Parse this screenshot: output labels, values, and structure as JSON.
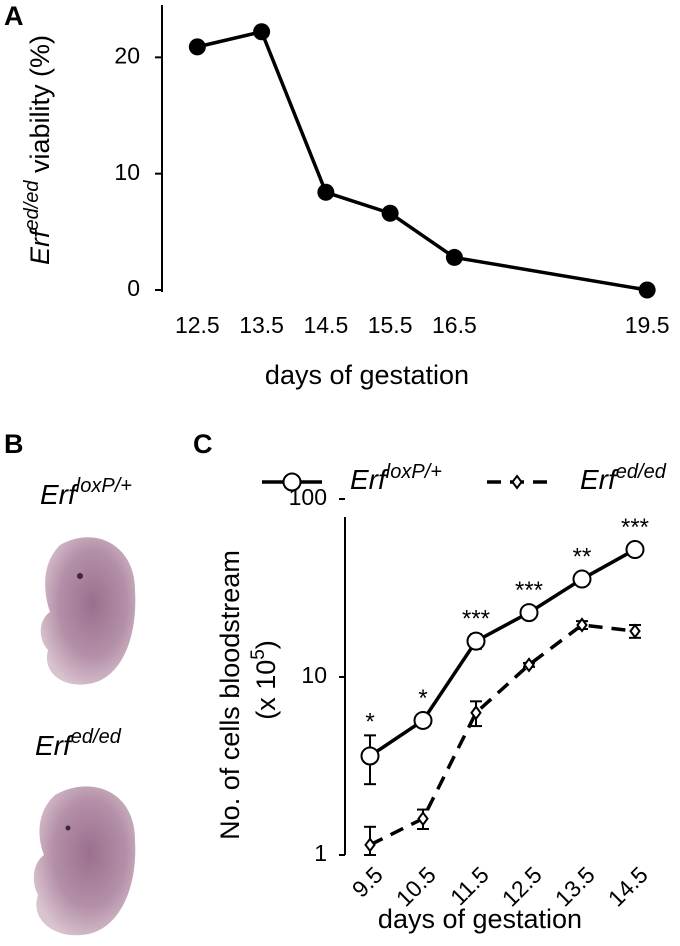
{
  "chart_data": [
    {
      "type": "line",
      "panel_label": "A",
      "ylabel_gene": "Erf",
      "ylabel_genotype": "ed/ed",
      "ylabel_rest": " viability (%)",
      "xlabel": "days of gestation",
      "x": [
        12.5,
        13.5,
        14.5,
        15.5,
        16.5,
        19.5
      ],
      "values": [
        20.9,
        22.2,
        8.4,
        6.6,
        2.8,
        0
      ],
      "color": "#000000",
      "xlim": [
        11.95,
        19.7
      ],
      "xticks": [
        12.5,
        13.5,
        14.5,
        15.5,
        16.5,
        19.5
      ],
      "ylim": [
        0,
        24.5
      ],
      "yticks": [
        0,
        10,
        20
      ]
    },
    {
      "type": "line",
      "panel_label": "C",
      "log_scale": true,
      "ylabel": "No. of cells bloodstream",
      "ylabel_unit": "(x 10",
      "ylabel_unit_exp": "5",
      "ylabel_unit_end": ")",
      "xlabel": "days of gestation",
      "categories": [
        "9.5",
        "10.5",
        "11.5",
        "12.5",
        "13.5",
        "14.5"
      ],
      "ylim": [
        1,
        100
      ],
      "yticks": [
        1,
        10,
        100
      ],
      "series": [
        {
          "name": "Erf",
          "name_superscript": "loxP/+",
          "color": "#000000",
          "values": [
            3.6,
            5.7,
            15.9,
            23,
            35.5,
            52
          ],
          "errors": [
            1.1,
            0.3,
            1.5,
            0,
            0,
            0
          ]
        },
        {
          "name": "Erf",
          "name_superscript": "ed/ed",
          "color": "#000000",
          "values": [
            1.14,
            1.6,
            6.3,
            11.7,
            19.6,
            18.1
          ],
          "errors": [
            0.3,
            0.2,
            1,
            0.3,
            1,
            1.5
          ]
        }
      ],
      "annotations": [
        "*",
        "*",
        "***",
        "***",
        "**",
        "***"
      ]
    }
  ],
  "panel_b": {
    "panel_label": "B",
    "images": [
      {
        "gene": "Erf",
        "genotype": "loxP/+"
      },
      {
        "gene": "Erf",
        "genotype": "ed/ed"
      }
    ]
  }
}
